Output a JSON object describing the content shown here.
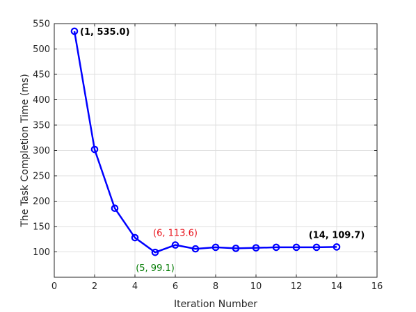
{
  "chart_data": {
    "type": "line",
    "title": "",
    "xlabel": "Iteration Number",
    "ylabel": "The Task Completion Time (ms)",
    "xlim": [
      0,
      16
    ],
    "ylim": [
      50,
      550
    ],
    "xticks": [
      0,
      2,
      4,
      6,
      8,
      10,
      12,
      14,
      16
    ],
    "yticks": [
      100,
      150,
      200,
      250,
      300,
      350,
      400,
      450,
      500,
      550
    ],
    "grid": true,
    "legend": "none",
    "series": [
      {
        "color": "#0000ff",
        "marker": "circle",
        "x": [
          1,
          2,
          3,
          4,
          5,
          6,
          7,
          8,
          9,
          10,
          11,
          12,
          13,
          14
        ],
        "y": [
          535.0,
          302,
          186,
          128,
          99.1,
          113.6,
          106,
          109,
          107,
          108,
          109,
          109,
          109,
          109.7
        ]
      }
    ],
    "annotations": [
      {
        "text": "(1, 535.0)",
        "x": 1,
        "y": 535.0,
        "color": "#000000",
        "bold": true,
        "placement": "right"
      },
      {
        "text": "(6, 113.6)",
        "x": 6,
        "y": 113.6,
        "color": "#e8111a",
        "bold": false,
        "placement": "above"
      },
      {
        "text": "(5, 99.1)",
        "x": 5,
        "y": 99.1,
        "color": "#007a00",
        "bold": false,
        "placement": "below"
      },
      {
        "text": "(14, 109.7)",
        "x": 14,
        "y": 109.7,
        "color": "#000000",
        "bold": true,
        "placement": "above"
      }
    ]
  }
}
